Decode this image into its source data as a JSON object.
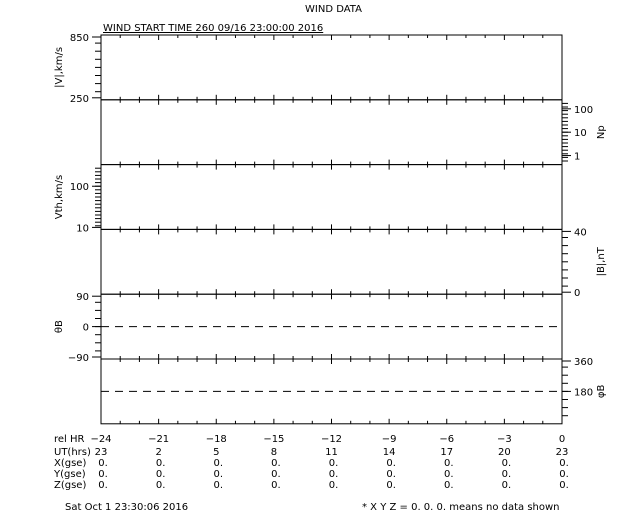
{
  "title": "WIND DATA",
  "subtitle": "WIND START TIME 260 09/16 23:00:00 2016",
  "timestamp": "Sat Oct  1 23:30:06 2016",
  "footnote": "* X Y Z = 0. 0. 0. means no data shown",
  "chart_data": {
    "type": "line",
    "title": "WIND DATA",
    "subtitle": "WIND START TIME 260 09/16 23:00:00 2016",
    "grid": false,
    "x": {
      "rows": [
        {
          "label": "rel HR",
          "values": [
            "-24",
            "-21",
            "-18",
            "-15",
            "-12",
            "-9",
            "-6",
            "-3",
            "0"
          ]
        },
        {
          "label": "UT(hrs)",
          "values": [
            "23",
            "2",
            "5",
            "8",
            "11",
            "14",
            "17",
            "20",
            "23"
          ]
        },
        {
          "label": "X(gse)",
          "values": [
            "0.",
            "0.",
            "0.",
            "0.",
            "0.",
            "0.",
            "0.",
            "0.",
            "0."
          ]
        },
        {
          "label": "Y(gse)",
          "values": [
            "0.",
            "0.",
            "0.",
            "0.",
            "0.",
            "0.",
            "0.",
            "0.",
            "0."
          ]
        },
        {
          "label": "Z(gse)",
          "values": [
            "0.",
            "0.",
            "0.",
            "0.",
            "0.",
            "0.",
            "0.",
            "0.",
            "0."
          ]
        }
      ],
      "range": [
        -24,
        0
      ]
    },
    "panels": [
      {
        "ylabel": "|V|,km/s",
        "side": "left",
        "scale": "linear",
        "ylim": [
          250,
          850
        ],
        "ticks": [
          "850",
          "250"
        ],
        "series": []
      },
      {
        "ylabel": "Np",
        "side": "right",
        "scale": "log",
        "ylim": [
          0.5,
          200
        ],
        "ticks": [
          "100",
          "10",
          "1"
        ],
        "series": []
      },
      {
        "ylabel": "Vth,km/s",
        "side": "left",
        "scale": "log",
        "ylim": [
          10,
          300
        ],
        "ticks": [
          "100",
          "10"
        ],
        "series": []
      },
      {
        "ylabel": "|B|,nT",
        "side": "right",
        "scale": "linear",
        "ylim": [
          0,
          40
        ],
        "ticks": [
          "40",
          "0"
        ],
        "series": []
      },
      {
        "ylabel": "θB",
        "side": "left",
        "scale": "linear",
        "ylim": [
          -90,
          90
        ],
        "ticks": [
          "90",
          "0",
          "-90"
        ],
        "dashed_reference": 0,
        "series": []
      },
      {
        "ylabel": "φB",
        "side": "right",
        "scale": "linear",
        "ylim": [
          0,
          360
        ],
        "ticks": [
          "360",
          "180"
        ],
        "dashed_reference": 180,
        "series": []
      }
    ]
  }
}
